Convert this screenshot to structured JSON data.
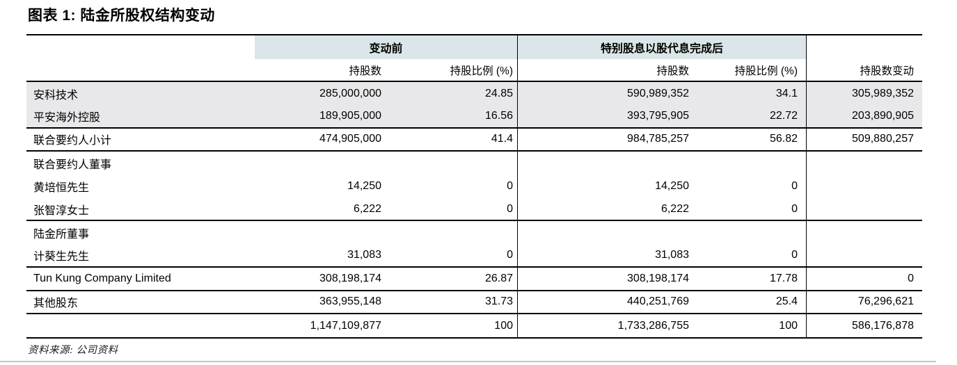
{
  "title": "图表 1: 陆金所股权结构变动",
  "source_note": "资料来源: 公司资料",
  "colors": {
    "group_band": "#dbe6e9",
    "shaded_row": "#e8e8ea",
    "rule": "#000000",
    "bottom_rule": "#c6c6c6"
  },
  "table": {
    "groups": [
      {
        "label": "变动前"
      },
      {
        "label": "特别股息以股代息完成后"
      }
    ],
    "sub_headers": [
      "持股数",
      "持股比例 (%)",
      "持股数",
      "持股比例 (%)",
      "持股数变动"
    ],
    "rows": [
      {
        "name": "安科技术",
        "cells": [
          "285,000,000",
          "24.85",
          "590,989,352",
          "34.1",
          "305,989,352"
        ],
        "shaded": true,
        "rule_below": false
      },
      {
        "name": "平安海外控股",
        "cells": [
          "189,905,000",
          "16.56",
          "393,795,905",
          "22.72",
          "203,890,905"
        ],
        "shaded": true,
        "rule_below": true
      },
      {
        "name": "联合要约人小计",
        "cells": [
          "474,905,000",
          "41.4",
          "984,785,257",
          "56.82",
          "509,880,257"
        ],
        "shaded": false,
        "rule_below": true
      },
      {
        "name": "联合要约人董事",
        "cells": [
          "",
          "",
          "",
          "",
          ""
        ],
        "shaded": false,
        "rule_below": false
      },
      {
        "name": "黄培恒先生",
        "cells": [
          "14,250",
          "0",
          "14,250",
          "0",
          ""
        ],
        "shaded": false,
        "rule_below": false
      },
      {
        "name": "张智淳女士",
        "cells": [
          "6,222",
          "0",
          "6,222",
          "0",
          ""
        ],
        "shaded": false,
        "rule_below": true
      },
      {
        "name": "陆金所董事",
        "cells": [
          "",
          "",
          "",
          "",
          ""
        ],
        "shaded": false,
        "rule_below": false
      },
      {
        "name": "计葵生先生",
        "cells": [
          "31,083",
          "0",
          "31,083",
          "0",
          ""
        ],
        "shaded": false,
        "rule_below": true
      },
      {
        "name": "Tun Kung Company Limited",
        "cells": [
          "308,198,174",
          "26.87",
          "308,198,174",
          "17.78",
          "0"
        ],
        "shaded": false,
        "rule_below": true
      },
      {
        "name": "其他股东",
        "cells": [
          "363,955,148",
          "31.73",
          "440,251,769",
          "25.4",
          "76,296,621"
        ],
        "shaded": false,
        "rule_below": true
      },
      {
        "name": "",
        "cells": [
          "1,147,109,877",
          "100",
          "1,733,286,755",
          "100",
          "586,176,878"
        ],
        "shaded": false,
        "rule_below": false
      }
    ]
  }
}
